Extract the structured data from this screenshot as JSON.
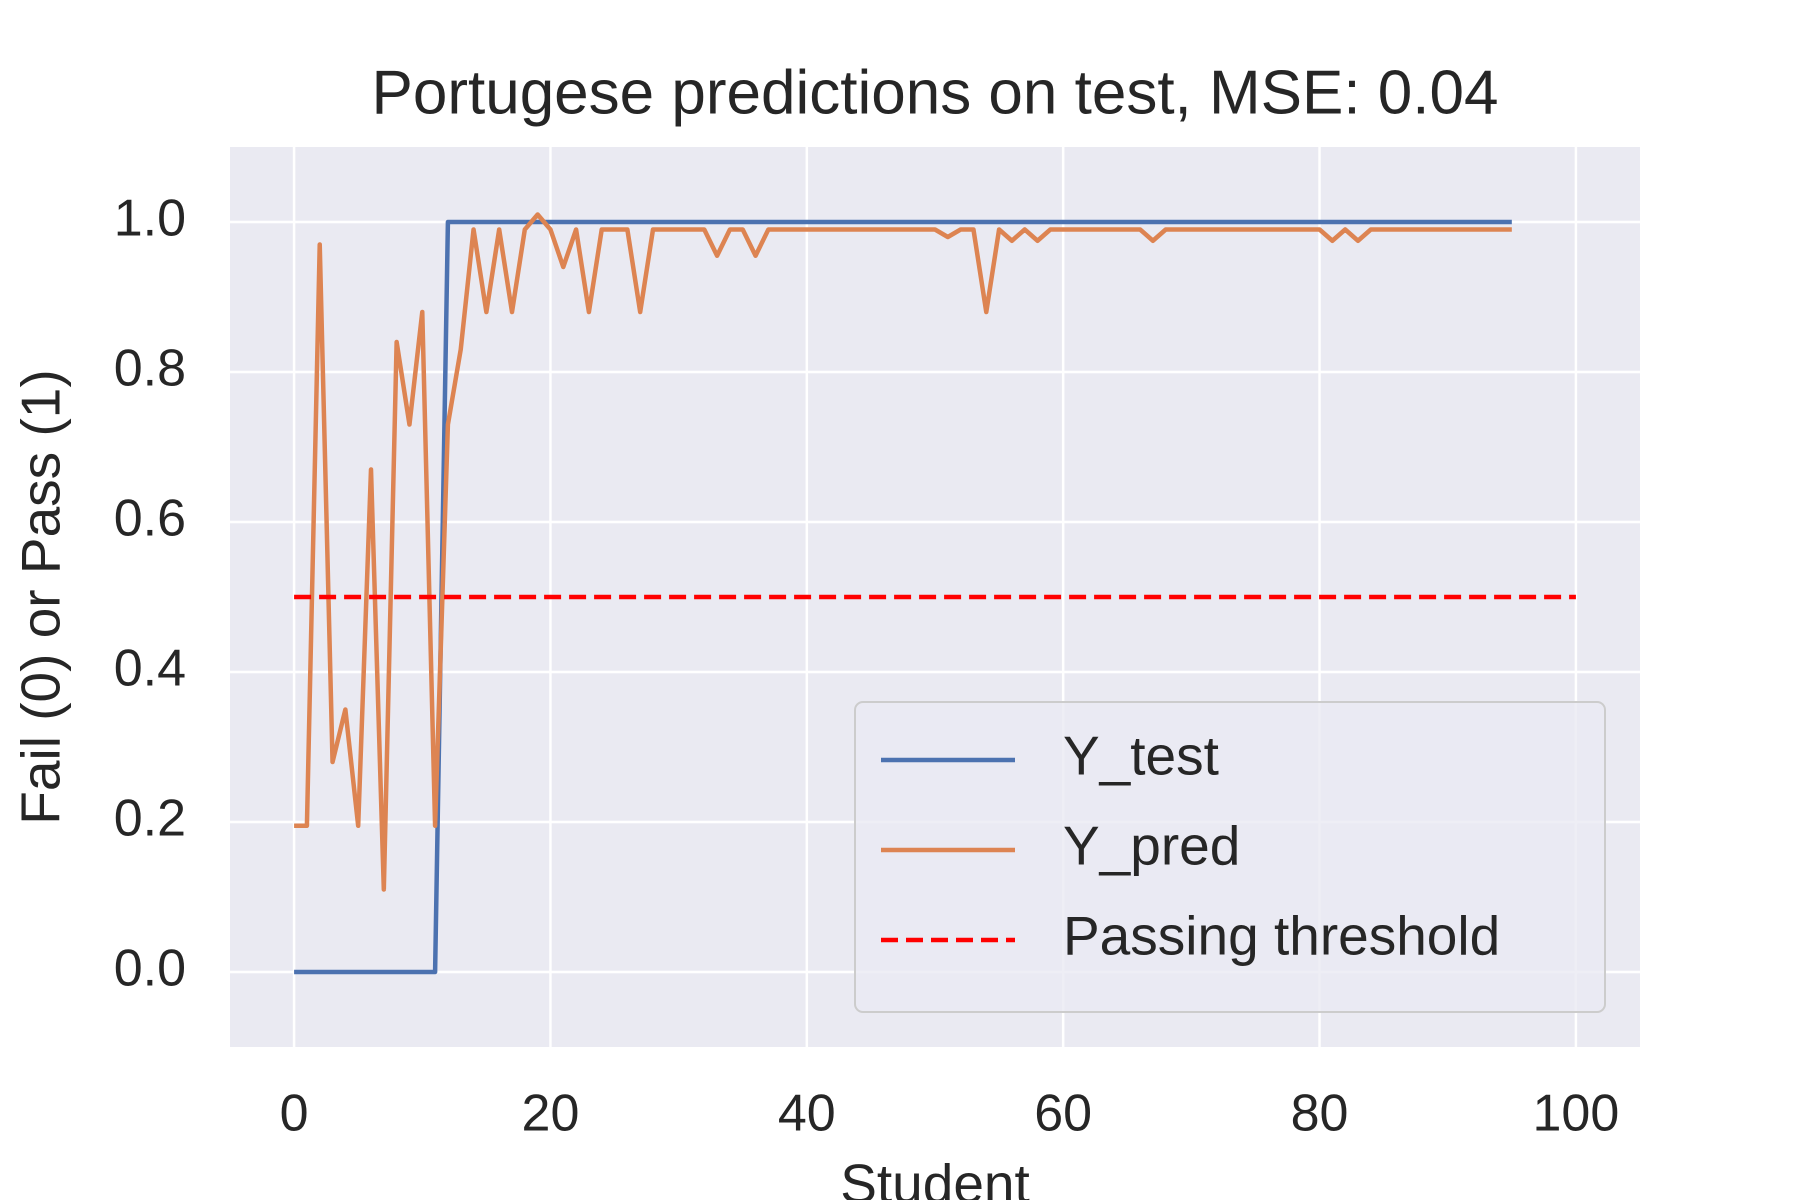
{
  "chart_data": {
    "type": "line",
    "title": "Portugese predictions on test, MSE: 0.04",
    "x_label": "Student",
    "y_label": "Fail (0) or Pass (1)",
    "x": [
      0,
      1,
      2,
      3,
      4,
      5,
      6,
      7,
      8,
      9,
      10,
      11,
      12,
      13,
      14,
      15,
      16,
      17,
      18,
      19,
      20,
      21,
      22,
      23,
      24,
      25,
      26,
      27,
      28,
      29,
      30,
      31,
      32,
      33,
      34,
      35,
      36,
      37,
      38,
      39,
      40,
      41,
      42,
      43,
      44,
      45,
      46,
      47,
      48,
      49,
      50,
      51,
      52,
      53,
      54,
      55,
      56,
      57,
      58,
      59,
      60,
      61,
      62,
      63,
      64,
      65,
      66,
      67,
      68,
      69,
      70,
      71,
      72,
      73,
      74,
      75,
      76,
      77,
      78,
      79,
      80,
      81,
      82,
      83,
      84,
      85,
      86,
      87,
      88,
      89,
      90,
      91,
      92,
      93,
      94,
      95
    ],
    "series": [
      {
        "name": "Y_test",
        "color": "#4c72b0",
        "linestyle": "solid",
        "values": [
          0,
          0,
          0,
          0,
          0,
          0,
          0,
          0,
          0,
          0,
          0,
          0,
          1,
          1,
          1,
          1,
          1,
          1,
          1,
          1,
          1,
          1,
          1,
          1,
          1,
          1,
          1,
          1,
          1,
          1,
          1,
          1,
          1,
          1,
          1,
          1,
          1,
          1,
          1,
          1,
          1,
          1,
          1,
          1,
          1,
          1,
          1,
          1,
          1,
          1,
          1,
          1,
          1,
          1,
          1,
          1,
          1,
          1,
          1,
          1,
          1,
          1,
          1,
          1,
          1,
          1,
          1,
          1,
          1,
          1,
          1,
          1,
          1,
          1,
          1,
          1,
          1,
          1,
          1,
          1,
          1,
          1,
          1,
          1,
          1,
          1,
          1,
          1,
          1,
          1,
          1,
          1,
          1,
          1,
          1,
          1
        ]
      },
      {
        "name": "Y_pred",
        "color": "#dd8452",
        "linestyle": "solid",
        "values": [
          0.195,
          0.195,
          0.97,
          0.28,
          0.35,
          0.195,
          0.67,
          0.11,
          0.84,
          0.73,
          0.88,
          0.195,
          0.73,
          0.83,
          0.99,
          0.88,
          0.99,
          0.88,
          0.99,
          1.01,
          0.99,
          0.94,
          0.99,
          0.88,
          0.99,
          0.99,
          0.99,
          0.88,
          0.99,
          0.99,
          0.99,
          0.99,
          0.99,
          0.955,
          0.99,
          0.99,
          0.955,
          0.99,
          0.99,
          0.99,
          0.99,
          0.99,
          0.99,
          0.99,
          0.99,
          0.99,
          0.99,
          0.99,
          0.99,
          0.99,
          0.99,
          0.98,
          0.99,
          0.99,
          0.88,
          0.99,
          0.975,
          0.99,
          0.975,
          0.99,
          0.99,
          0.99,
          0.99,
          0.99,
          0.99,
          0.99,
          0.99,
          0.975,
          0.99,
          0.99,
          0.99,
          0.99,
          0.99,
          0.99,
          0.99,
          0.99,
          0.99,
          0.99,
          0.99,
          0.99,
          0.99,
          0.975,
          0.99,
          0.975,
          0.99,
          0.99,
          0.99,
          0.99,
          0.99,
          0.99,
          0.99,
          0.99,
          0.99,
          0.99,
          0.99,
          0.99
        ]
      },
      {
        "name": "Passing threshold",
        "color": "#ff0000",
        "linestyle": "dashed",
        "x": [
          0,
          100
        ],
        "values": [
          0.5,
          0.5
        ]
      }
    ],
    "xlim": [
      -5,
      105
    ],
    "xticks": [
      0,
      20,
      40,
      60,
      80,
      100
    ],
    "ylim": [
      -0.1,
      1.1
    ],
    "yticks": [
      {
        "value": 0,
        "label": "0.0"
      },
      0.2,
      0.4,
      0.6,
      0.8,
      {
        "value": 1,
        "label": "1.0"
      }
    ],
    "grid": true,
    "legend": "lower right"
  }
}
